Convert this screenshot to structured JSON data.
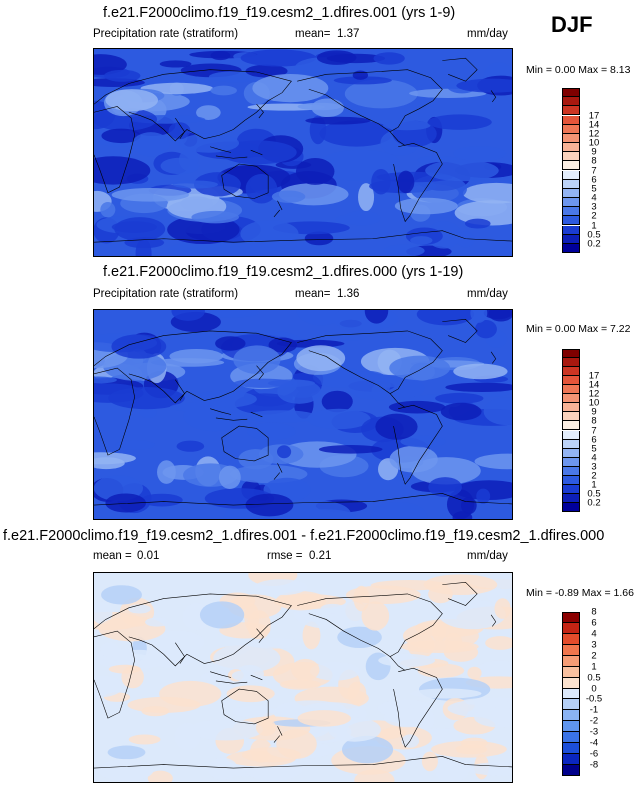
{
  "season": "DJF",
  "colors": {
    "precip": [
      "#00009a",
      "#0d1fb8",
      "#1a3cd2",
      "#2d5ae0",
      "#4a78e8",
      "#6d96ee",
      "#93b4f3",
      "#bcd3f8",
      "#e4eefc",
      "#fcefe4",
      "#fbd3bd",
      "#f8b396",
      "#f49474",
      "#ee7655",
      "#e4553a",
      "#cc3523",
      "#a8180f",
      "#7f0000"
    ],
    "diff": [
      "#00008b",
      "#0a26c0",
      "#1c4fda",
      "#3a73e6",
      "#5f95ee",
      "#8ab3f3",
      "#b5d0f7",
      "#dce9fb",
      "#fbe2cf",
      "#f9c1a0",
      "#f69d76",
      "#f0764d",
      "#e34c2b",
      "#c42414",
      "#8b0000"
    ]
  },
  "panels": [
    {
      "title": "f.e21.F2000climo.f19_f19.cesm2_1.dfires.001 (yrs 1-9)",
      "variable": "Precipitation rate (stratiform)",
      "stat_label": "mean=",
      "stat_value": "1.37",
      "units": "mm/day",
      "minmax": "Min =  0.00 Max =  8.13",
      "levels": [
        "0.2",
        "0.5",
        "1",
        "2",
        "3",
        "4",
        "5",
        "6",
        "7",
        "8",
        "9",
        "10",
        "12",
        "14",
        "17"
      ]
    },
    {
      "title": "f.e21.F2000climo.f19_f19.cesm2_1.dfires.000 (yrs 1-19)",
      "variable": "Precipitation rate (stratiform)",
      "stat_label": "mean=",
      "stat_value": "1.36",
      "units": "mm/day",
      "minmax": "Min =  0.00 Max =  7.22",
      "levels": [
        "0.2",
        "0.5",
        "1",
        "2",
        "3",
        "4",
        "5",
        "6",
        "7",
        "8",
        "9",
        "10",
        "12",
        "14",
        "17"
      ]
    },
    {
      "title": "f.e21.F2000climo.f19_f19.cesm2_1.dfires.001 - f.e21.F2000climo.f19_f19.cesm2_1.dfires.000",
      "stat_label": "mean =",
      "stat_value": "0.01",
      "rmse_label": "rmse =",
      "rmse_value": "0.21",
      "units": "mm/day",
      "minmax": "Min = -0.89 Max =  1.66",
      "levels": [
        "-8",
        "-6",
        "-4",
        "-3",
        "-2",
        "-1",
        "-0.5",
        "0",
        "0.5",
        "1",
        "2",
        "3",
        "4",
        "6",
        "8"
      ]
    }
  ],
  "chart_data": [
    {
      "type": "heatmap",
      "title": "f.e21.F2000climo.f19_f19.cesm2_1.dfires.001 (yrs 1-9)",
      "variable": "Precipitation rate (stratiform)",
      "units": "mm/day",
      "mean": 1.37,
      "min": 0.0,
      "max": 8.13,
      "contour_levels": [
        0.2,
        0.5,
        1,
        2,
        3,
        4,
        5,
        6,
        7,
        8,
        9,
        10,
        12,
        14,
        17
      ]
    },
    {
      "type": "heatmap",
      "title": "f.e21.F2000climo.f19_f19.cesm2_1.dfires.000 (yrs 1-19)",
      "variable": "Precipitation rate (stratiform)",
      "units": "mm/day",
      "mean": 1.36,
      "min": 0.0,
      "max": 7.22,
      "contour_levels": [
        0.2,
        0.5,
        1,
        2,
        3,
        4,
        5,
        6,
        7,
        8,
        9,
        10,
        12,
        14,
        17
      ]
    },
    {
      "type": "heatmap",
      "title": "f.e21.F2000climo.f19_f19.cesm2_1.dfires.001 - f.e21.F2000climo.f19_f19.cesm2_1.dfires.000",
      "units": "mm/day",
      "mean": 0.01,
      "rmse": 0.21,
      "min": -0.89,
      "max": 1.66,
      "contour_levels": [
        -8,
        -6,
        -4,
        -3,
        -2,
        -1,
        -0.5,
        0,
        0.5,
        1,
        2,
        3,
        4,
        6,
        8
      ]
    }
  ]
}
